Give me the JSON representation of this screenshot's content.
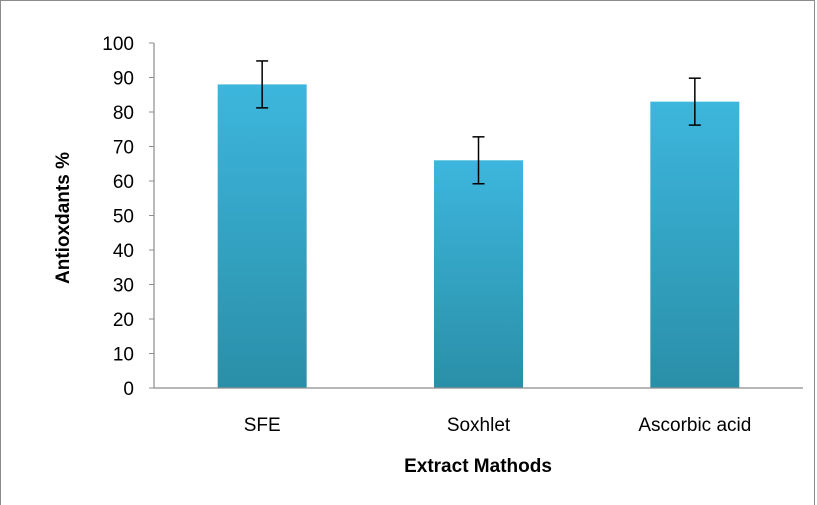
{
  "chart_data": {
    "type": "bar",
    "title": "",
    "categories": [
      "SFE",
      "Soxhlet",
      "Ascorbic acid"
    ],
    "values": [
      88,
      66,
      83
    ],
    "error": [
      6.8,
      6.8,
      6.8
    ],
    "xlabel": "Extract Mathods",
    "ylabel": "Antioxdants %",
    "ylim": [
      0,
      100
    ],
    "yticks": [
      0,
      10,
      20,
      30,
      40,
      50,
      60,
      70,
      80,
      90,
      100
    ],
    "ytick_labels": [
      "0",
      "10",
      "20",
      "30",
      "40",
      "50",
      "60",
      "70",
      "80",
      "90",
      "100"
    ],
    "grid": false,
    "legend": "none",
    "colors": {
      "bar_top": "#3db6dd",
      "bar_bottom": "#2a8fa8",
      "axis": "#8c8c8c",
      "error_bar": "#000000"
    }
  }
}
